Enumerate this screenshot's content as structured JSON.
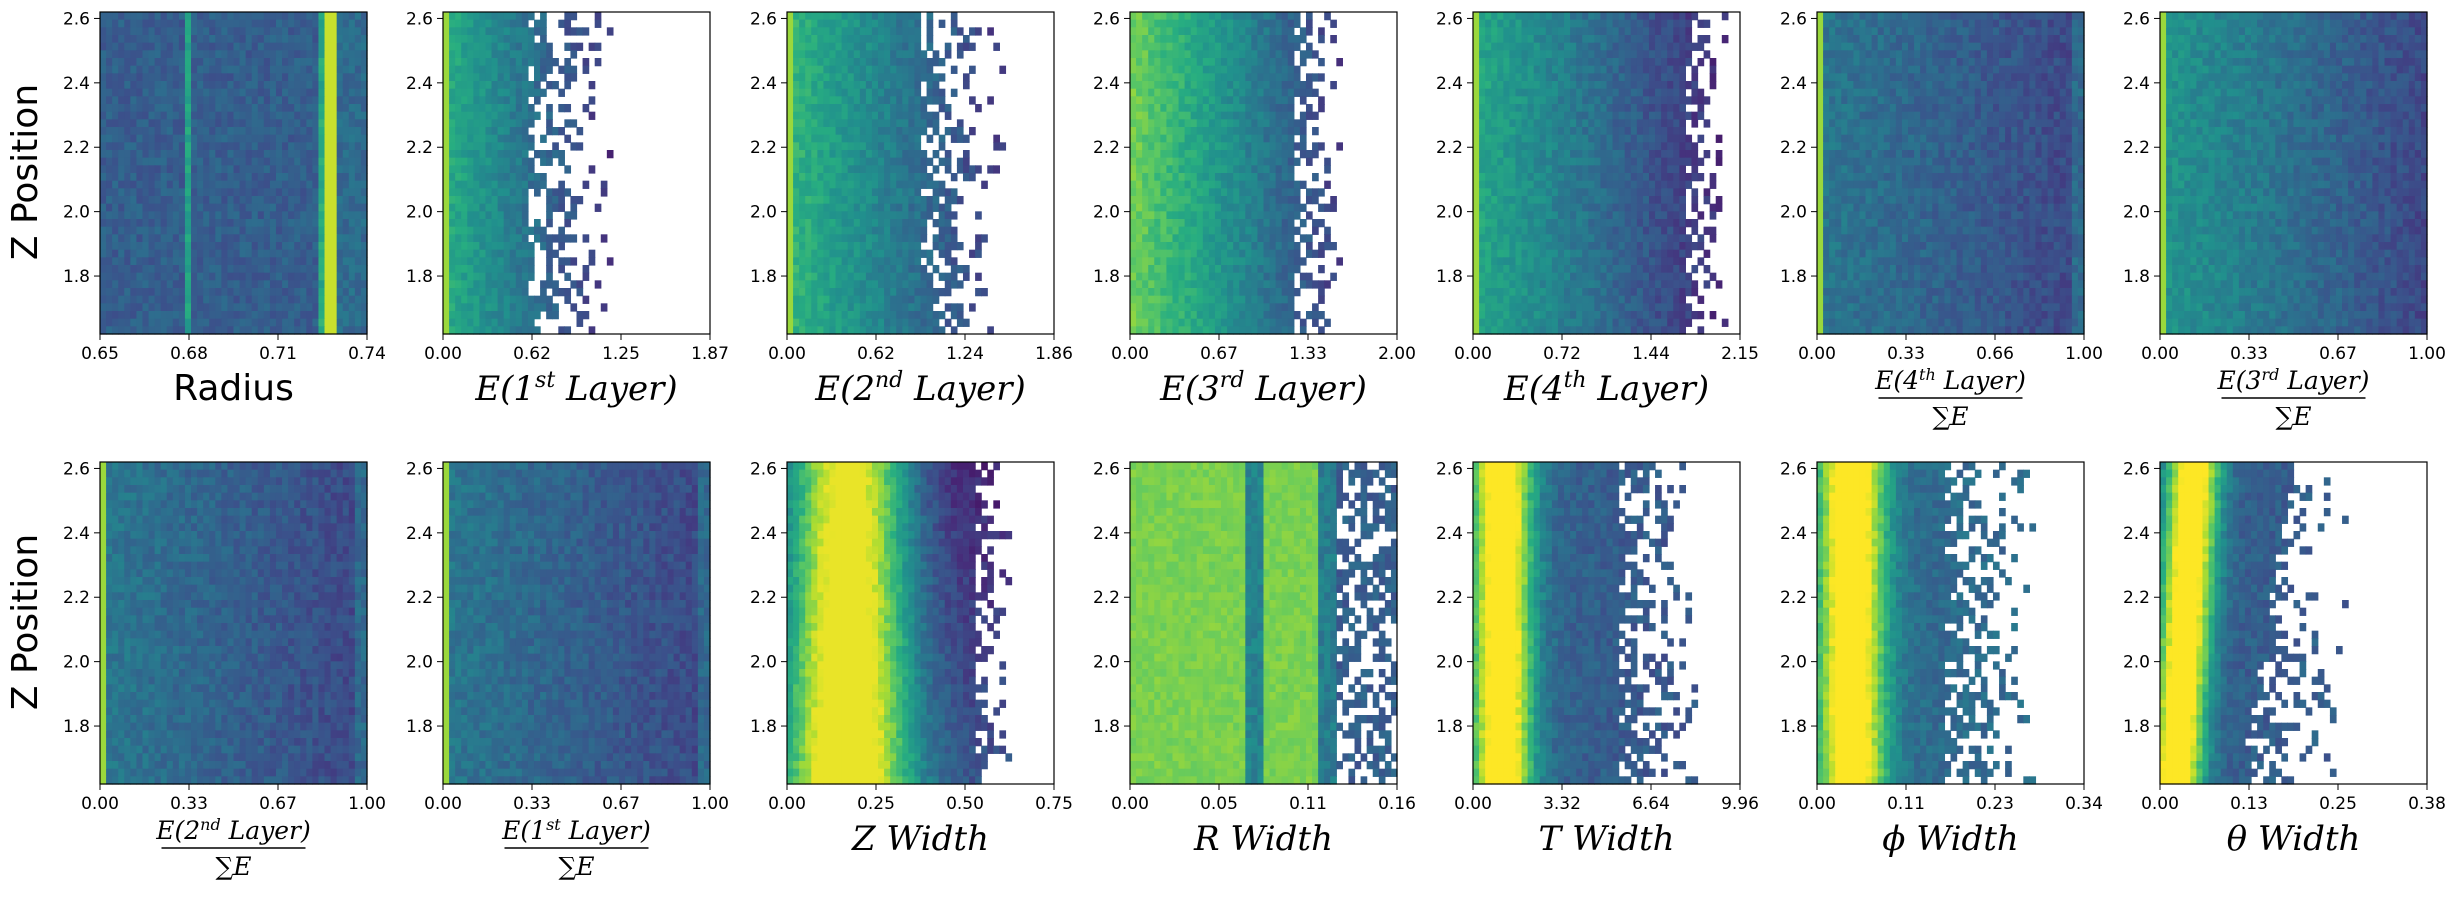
{
  "figure": {
    "ylabel": "Z Position"
  },
  "chart_data": [
    {
      "type": "heatmap",
      "xlabel": "Radius",
      "xlabel_style": "plain",
      "xticks": [
        "0.65",
        "0.68",
        "0.71",
        "0.74"
      ],
      "xlim": [
        0.65,
        0.74
      ],
      "yticks": [
        "1.8",
        "2.0",
        "2.2",
        "2.4",
        "2.6"
      ],
      "ylim": [
        1.62,
        2.62
      ],
      "profile": "radius"
    },
    {
      "type": "heatmap",
      "xlabel": "E(1st Layer)",
      "xlabel_parts": [
        "E(1",
        "st",
        " Layer)"
      ],
      "xlabel_style": "math",
      "xticks": [
        "0.00",
        "0.62",
        "1.25",
        "1.87"
      ],
      "xlim": [
        0,
        1.87
      ],
      "yticks": [
        "1.8",
        "2.0",
        "2.2",
        "2.4",
        "2.6"
      ],
      "ylim": [
        1.62,
        2.62
      ],
      "profile": "decay_sparse"
    },
    {
      "type": "heatmap",
      "xlabel": "E(2nd Layer)",
      "xlabel_parts": [
        "E(2",
        "nd",
        " Layer)"
      ],
      "xlabel_style": "math",
      "xticks": [
        "0.00",
        "0.62",
        "1.24",
        "1.86"
      ],
      "xlim": [
        0,
        1.86
      ],
      "yticks": [
        "1.8",
        "2.0",
        "2.2",
        "2.4",
        "2.6"
      ],
      "ylim": [
        1.62,
        2.62
      ],
      "profile": "decay"
    },
    {
      "type": "heatmap",
      "xlabel": "E(3rd Layer)",
      "xlabel_parts": [
        "E(3",
        "rd",
        " Layer)"
      ],
      "xlabel_style": "math",
      "xticks": [
        "0.00",
        "0.67",
        "1.33",
        "2.00"
      ],
      "xlim": [
        0,
        2.0
      ],
      "yticks": [
        "1.8",
        "2.0",
        "2.2",
        "2.4",
        "2.6"
      ],
      "ylim": [
        1.62,
        2.62
      ],
      "profile": "decay_wide"
    },
    {
      "type": "heatmap",
      "xlabel": "E(4th Layer)",
      "xlabel_parts": [
        "E(4",
        "th",
        " Layer)"
      ],
      "xlabel_style": "math",
      "xticks": [
        "0.00",
        "0.72",
        "1.44",
        "2.15"
      ],
      "xlim": [
        0,
        2.15
      ],
      "yticks": [
        "1.8",
        "2.0",
        "2.2",
        "2.4",
        "2.6"
      ],
      "ylim": [
        1.62,
        2.62
      ],
      "profile": "flat_edge"
    },
    {
      "type": "heatmap",
      "xlabel": "E(4th Layer)/ΣE",
      "xlabel_parts": [
        "E(4",
        "th",
        " Layer)"
      ],
      "xlabel_style": "fraction",
      "xticks": [
        "0.00",
        "0.33",
        "0.66",
        "1.00"
      ],
      "xlim": [
        0,
        1
      ],
      "yticks": [
        "1.8",
        "2.0",
        "2.2",
        "2.4",
        "2.6"
      ],
      "ylim": [
        1.62,
        2.62
      ],
      "profile": "fraction"
    },
    {
      "type": "heatmap",
      "xlabel": "E(3rd Layer)/ΣE",
      "xlabel_parts": [
        "E(3",
        "rd",
        " Layer)"
      ],
      "xlabel_style": "fraction",
      "xticks": [
        "0.00",
        "0.33",
        "0.67",
        "1.00"
      ],
      "xlim": [
        0,
        1
      ],
      "yticks": [
        "1.8",
        "2.0",
        "2.2",
        "2.4",
        "2.6"
      ],
      "ylim": [
        1.62,
        2.62
      ],
      "profile": "fraction_left"
    },
    {
      "type": "heatmap",
      "xlabel": "E(2nd Layer)/ΣE",
      "xlabel_parts": [
        "E(2",
        "nd",
        " Layer)"
      ],
      "xlabel_style": "fraction",
      "xticks": [
        "0.00",
        "0.33",
        "0.67",
        "1.00"
      ],
      "xlim": [
        0,
        1
      ],
      "yticks": [
        "1.8",
        "2.0",
        "2.2",
        "2.4",
        "2.6"
      ],
      "ylim": [
        1.62,
        2.62
      ],
      "profile": "fraction"
    },
    {
      "type": "heatmap",
      "xlabel": "E(1st Layer)/ΣE",
      "xlabel_parts": [
        "E(1",
        "st",
        " Layer)"
      ],
      "xlabel_style": "fraction",
      "xticks": [
        "0.00",
        "0.33",
        "0.67",
        "1.00"
      ],
      "xlim": [
        0,
        1
      ],
      "yticks": [
        "1.8",
        "2.0",
        "2.2",
        "2.4",
        "2.6"
      ],
      "ylim": [
        1.62,
        2.62
      ],
      "profile": "fraction"
    },
    {
      "type": "heatmap",
      "xlabel": "Z Width",
      "xlabel_parts": [
        "Z",
        " Width"
      ],
      "xlabel_style": "width",
      "xticks": [
        "0.00",
        "0.25",
        "0.50",
        "0.75"
      ],
      "xlim": [
        0,
        0.75
      ],
      "yticks": [
        "1.8",
        "2.0",
        "2.2",
        "2.4",
        "2.6"
      ],
      "ylim": [
        1.62,
        2.62
      ],
      "profile": "peak_mid"
    },
    {
      "type": "heatmap",
      "xlabel": "R Width",
      "xlabel_parts": [
        "R",
        " Width"
      ],
      "xlabel_style": "width",
      "xticks": [
        "0.00",
        "0.05",
        "0.11",
        "0.16"
      ],
      "xlim": [
        0,
        0.16
      ],
      "yticks": [
        "1.8",
        "2.0",
        "2.2",
        "2.4",
        "2.6"
      ],
      "ylim": [
        1.62,
        2.62
      ],
      "profile": "rwidth"
    },
    {
      "type": "heatmap",
      "xlabel": "T Width",
      "xlabel_parts": [
        "T",
        " Width"
      ],
      "xlabel_style": "width",
      "xticks": [
        "0.00",
        "3.32",
        "6.64",
        "9.96"
      ],
      "xlim": [
        0,
        9.96
      ],
      "yticks": [
        "1.8",
        "2.0",
        "2.2",
        "2.4",
        "2.6"
      ],
      "ylim": [
        1.62,
        2.62
      ],
      "profile": "peak_left_sparse"
    },
    {
      "type": "heatmap",
      "xlabel": "φ Width",
      "xlabel_parts": [
        "ϕ",
        " Width"
      ],
      "xlabel_style": "width",
      "xticks": [
        "0.00",
        "0.11",
        "0.23",
        "0.34"
      ],
      "xlim": [
        0,
        0.34
      ],
      "yticks": [
        "1.8",
        "2.0",
        "2.2",
        "2.4",
        "2.6"
      ],
      "ylim": [
        1.62,
        2.62
      ],
      "profile": "peak_left_sparse2"
    },
    {
      "type": "heatmap",
      "xlabel": "θ Width",
      "xlabel_parts": [
        "θ",
        " Width"
      ],
      "xlabel_style": "width",
      "xticks": [
        "0.00",
        "0.13",
        "0.25",
        "0.38"
      ],
      "xlim": [
        0,
        0.38
      ],
      "yticks": [
        "1.8",
        "2.0",
        "2.2",
        "2.4",
        "2.6"
      ],
      "ylim": [
        1.62,
        2.62
      ],
      "profile": "theta"
    }
  ],
  "sum_symbol": "∑E",
  "colormap": [
    "#440154",
    "#472c7a",
    "#3b518b",
    "#2c718e",
    "#21908d",
    "#27ad81",
    "#5cc863",
    "#aadc32",
    "#fde725"
  ]
}
